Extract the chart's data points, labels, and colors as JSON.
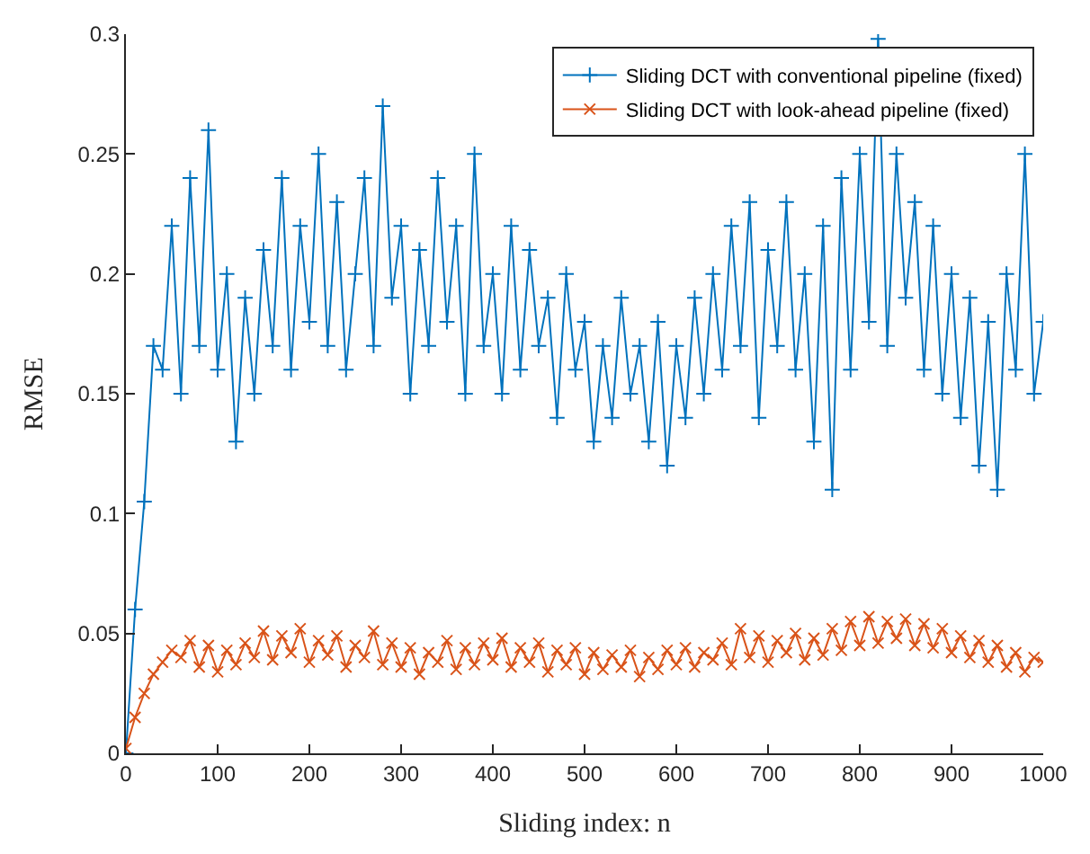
{
  "chart_data": {
    "type": "line",
    "xlabel": "Sliding index: n",
    "ylabel": "RMSE",
    "xlim": [
      0,
      1000
    ],
    "ylim": [
      0,
      0.3
    ],
    "xticks": [
      0,
      100,
      200,
      300,
      400,
      500,
      600,
      700,
      800,
      900,
      1000
    ],
    "yticks": [
      0,
      0.05,
      0.1,
      0.15,
      0.2,
      0.25,
      0.3
    ],
    "legend": "top right",
    "line_style": "solid",
    "x": [
      0,
      10,
      20,
      30,
      40,
      50,
      60,
      70,
      80,
      90,
      100,
      110,
      120,
      130,
      140,
      150,
      160,
      170,
      180,
      190,
      200,
      210,
      220,
      230,
      240,
      250,
      260,
      270,
      280,
      290,
      300,
      310,
      320,
      330,
      340,
      350,
      360,
      370,
      380,
      390,
      400,
      410,
      420,
      430,
      440,
      450,
      460,
      470,
      480,
      490,
      500,
      510,
      520,
      530,
      540,
      550,
      560,
      570,
      580,
      590,
      600,
      610,
      620,
      630,
      640,
      650,
      660,
      670,
      680,
      690,
      700,
      710,
      720,
      730,
      740,
      750,
      760,
      770,
      780,
      790,
      800,
      810,
      820,
      830,
      840,
      850,
      860,
      870,
      880,
      890,
      900,
      910,
      920,
      930,
      940,
      950,
      960,
      970,
      980,
      990,
      1000
    ],
    "series": [
      {
        "name": "Sliding DCT with conventional pipeline (fixed)",
        "color": "#0072bd",
        "marker": "cross",
        "values": [
          0,
          0.06,
          0.105,
          0.17,
          0.16,
          0.22,
          0.15,
          0.24,
          0.17,
          0.26,
          0.16,
          0.2,
          0.13,
          0.19,
          0.15,
          0.21,
          0.17,
          0.24,
          0.16,
          0.22,
          0.18,
          0.25,
          0.17,
          0.23,
          0.16,
          0.2,
          0.24,
          0.17,
          0.27,
          0.19,
          0.22,
          0.15,
          0.21,
          0.17,
          0.24,
          0.18,
          0.22,
          0.15,
          0.25,
          0.17,
          0.2,
          0.15,
          0.22,
          0.16,
          0.21,
          0.17,
          0.19,
          0.14,
          0.2,
          0.16,
          0.18,
          0.13,
          0.17,
          0.14,
          0.19,
          0.15,
          0.17,
          0.13,
          0.18,
          0.12,
          0.17,
          0.14,
          0.19,
          0.15,
          0.2,
          0.16,
          0.22,
          0.17,
          0.23,
          0.14,
          0.21,
          0.17,
          0.23,
          0.16,
          0.2,
          0.13,
          0.22,
          0.11,
          0.24,
          0.16,
          0.25,
          0.18,
          0.298,
          0.17,
          0.25,
          0.19,
          0.23,
          0.16,
          0.22,
          0.15,
          0.2,
          0.14,
          0.19,
          0.12,
          0.18,
          0.11,
          0.2,
          0.16,
          0.25,
          0.15,
          0.18
        ]
      },
      {
        "name": "Sliding DCT with look-ahead pipeline (fixed)",
        "color": "#d95319",
        "marker": "x",
        "values": [
          0.002,
          0.015,
          0.025,
          0.033,
          0.038,
          0.043,
          0.04,
          0.047,
          0.036,
          0.045,
          0.034,
          0.043,
          0.037,
          0.046,
          0.04,
          0.051,
          0.039,
          0.049,
          0.042,
          0.052,
          0.038,
          0.047,
          0.041,
          0.049,
          0.036,
          0.045,
          0.04,
          0.051,
          0.037,
          0.046,
          0.036,
          0.044,
          0.033,
          0.042,
          0.038,
          0.047,
          0.035,
          0.044,
          0.037,
          0.046,
          0.039,
          0.048,
          0.036,
          0.044,
          0.038,
          0.046,
          0.034,
          0.043,
          0.037,
          0.044,
          0.033,
          0.042,
          0.035,
          0.041,
          0.036,
          0.043,
          0.032,
          0.04,
          0.035,
          0.043,
          0.037,
          0.044,
          0.036,
          0.042,
          0.039,
          0.046,
          0.037,
          0.052,
          0.04,
          0.049,
          0.038,
          0.047,
          0.042,
          0.05,
          0.039,
          0.048,
          0.041,
          0.052,
          0.043,
          0.055,
          0.045,
          0.057,
          0.046,
          0.055,
          0.048,
          0.056,
          0.045,
          0.054,
          0.044,
          0.052,
          0.042,
          0.049,
          0.04,
          0.047,
          0.038,
          0.045,
          0.036,
          0.042,
          0.034,
          0.04,
          0.038
        ]
      }
    ]
  }
}
